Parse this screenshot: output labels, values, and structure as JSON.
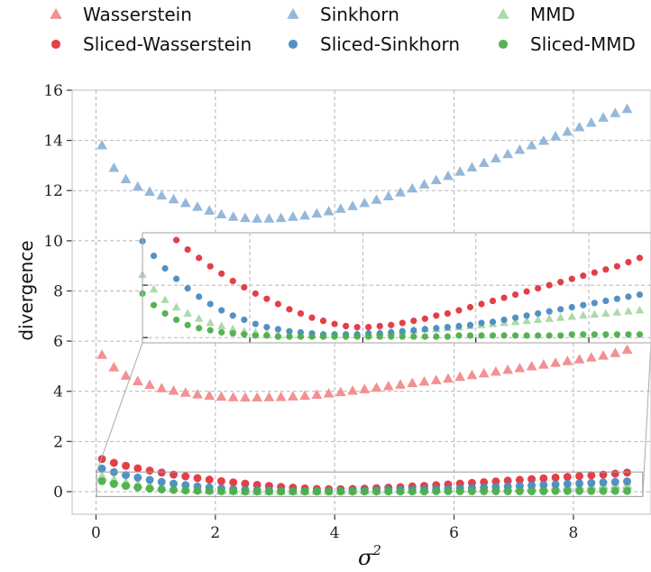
{
  "chart_data": {
    "type": "scatter",
    "title": "",
    "xlabel": "σ",
    "xlabel_superscript": "2",
    "ylabel": "divergence",
    "xlim": [
      -0.4,
      9.3
    ],
    "ylim": [
      -0.9,
      16
    ],
    "xticks": [
      "0",
      "2",
      "4",
      "6",
      "8"
    ],
    "yticks": [
      "0",
      "2",
      "4",
      "6",
      "8",
      "10",
      "12",
      "14",
      "16"
    ],
    "grid": true,
    "legend_position": "top",
    "x": [
      0.1,
      0.3,
      0.5,
      0.7,
      0.9,
      1.1,
      1.3,
      1.5,
      1.7,
      1.9,
      2.1,
      2.3,
      2.5,
      2.7,
      2.9,
      3.1,
      3.3,
      3.5,
      3.7,
      3.9,
      4.1,
      4.3,
      4.5,
      4.7,
      4.9,
      5.1,
      5.3,
      5.5,
      5.7,
      5.9,
      6.1,
      6.3,
      6.5,
      6.7,
      6.9,
      7.1,
      7.3,
      7.5,
      7.7,
      7.9,
      8.1,
      8.3,
      8.5,
      8.7,
      8.9
    ],
    "series": [
      {
        "name": "Wasserstein",
        "marker": "triangle",
        "color": "#f28b8c",
        "values": [
          5.45,
          4.95,
          4.62,
          4.4,
          4.25,
          4.12,
          4.02,
          3.94,
          3.87,
          3.82,
          3.78,
          3.76,
          3.75,
          3.75,
          3.76,
          3.77,
          3.79,
          3.82,
          3.86,
          3.91,
          3.96,
          4.02,
          4.08,
          4.14,
          4.2,
          4.26,
          4.32,
          4.38,
          4.44,
          4.5,
          4.57,
          4.64,
          4.71,
          4.78,
          4.85,
          4.92,
          4.99,
          5.06,
          5.13,
          5.2,
          5.27,
          5.34,
          5.42,
          5.52,
          5.65
        ]
      },
      {
        "name": "Sinkhorn",
        "marker": "triangle",
        "color": "#8fb4d8",
        "values": [
          13.8,
          12.9,
          12.45,
          12.15,
          11.95,
          11.8,
          11.65,
          11.5,
          11.35,
          11.2,
          11.05,
          10.95,
          10.9,
          10.88,
          10.88,
          10.9,
          10.95,
          11.0,
          11.08,
          11.17,
          11.27,
          11.38,
          11.5,
          11.63,
          11.77,
          11.92,
          12.08,
          12.24,
          12.41,
          12.58,
          12.75,
          12.92,
          13.1,
          13.28,
          13.45,
          13.62,
          13.8,
          13.98,
          14.16,
          14.34,
          14.52,
          14.7,
          14.9,
          15.08,
          15.25
        ]
      },
      {
        "name": "MMD",
        "marker": "triangle",
        "color": "#a8d8a3",
        "values": [
          0.6,
          0.46,
          0.36,
          0.29,
          0.23,
          0.18,
          0.14,
          0.11,
          0.08,
          0.06,
          0.05,
          0.04,
          0.03,
          0.03,
          0.03,
          0.03,
          0.03,
          0.03,
          0.03,
          0.04,
          0.04,
          0.05,
          0.05,
          0.06,
          0.07,
          0.08,
          0.08,
          0.09,
          0.1,
          0.11,
          0.12,
          0.13,
          0.14,
          0.15,
          0.16,
          0.17,
          0.18,
          0.19,
          0.2,
          0.21,
          0.22,
          0.23,
          0.24,
          0.25,
          0.26
        ]
      },
      {
        "name": "Sliced-Wasserstein",
        "marker": "circle",
        "color": "#e3353d",
        "values": [
          1.3,
          1.15,
          1.03,
          0.93,
          0.84,
          0.76,
          0.68,
          0.61,
          0.54,
          0.48,
          0.42,
          0.37,
          0.32,
          0.27,
          0.23,
          0.19,
          0.16,
          0.13,
          0.11,
          0.1,
          0.1,
          0.11,
          0.12,
          0.14,
          0.16,
          0.18,
          0.21,
          0.23,
          0.26,
          0.29,
          0.32,
          0.35,
          0.38,
          0.41,
          0.44,
          0.47,
          0.5,
          0.53,
          0.56,
          0.59,
          0.62,
          0.65,
          0.68,
          0.72,
          0.76
        ]
      },
      {
        "name": "Sliced-Sinkhorn",
        "marker": "circle",
        "color": "#4a8bc2",
        "values": [
          0.92,
          0.78,
          0.66,
          0.56,
          0.47,
          0.39,
          0.32,
          0.26,
          0.21,
          0.17,
          0.13,
          0.1,
          0.08,
          0.06,
          0.05,
          0.04,
          0.03,
          0.03,
          0.03,
          0.03,
          0.04,
          0.04,
          0.05,
          0.06,
          0.07,
          0.08,
          0.09,
          0.1,
          0.11,
          0.12,
          0.14,
          0.15,
          0.17,
          0.19,
          0.21,
          0.23,
          0.25,
          0.27,
          0.29,
          0.31,
          0.33,
          0.35,
          0.37,
          0.39,
          0.41
        ]
      },
      {
        "name": "Sliced-MMD",
        "marker": "circle",
        "color": "#4daf4a",
        "values": [
          0.42,
          0.31,
          0.23,
          0.17,
          0.12,
          0.09,
          0.07,
          0.05,
          0.04,
          0.03,
          0.02,
          0.02,
          0.01,
          0.01,
          0.01,
          0.01,
          0.01,
          0.01,
          0.01,
          0.01,
          0.01,
          0.01,
          0.01,
          0.01,
          0.01,
          0.01,
          0.01,
          0.01,
          0.02,
          0.02,
          0.02,
          0.02,
          0.02,
          0.02,
          0.02,
          0.02,
          0.02,
          0.02,
          0.03,
          0.03,
          0.03,
          0.03,
          0.03,
          0.03,
          0.03
        ]
      }
    ],
    "inset": {
      "xlim": [
        0.1,
        9.1
      ],
      "ylim": [
        -0.05,
        1.0
      ]
    }
  }
}
